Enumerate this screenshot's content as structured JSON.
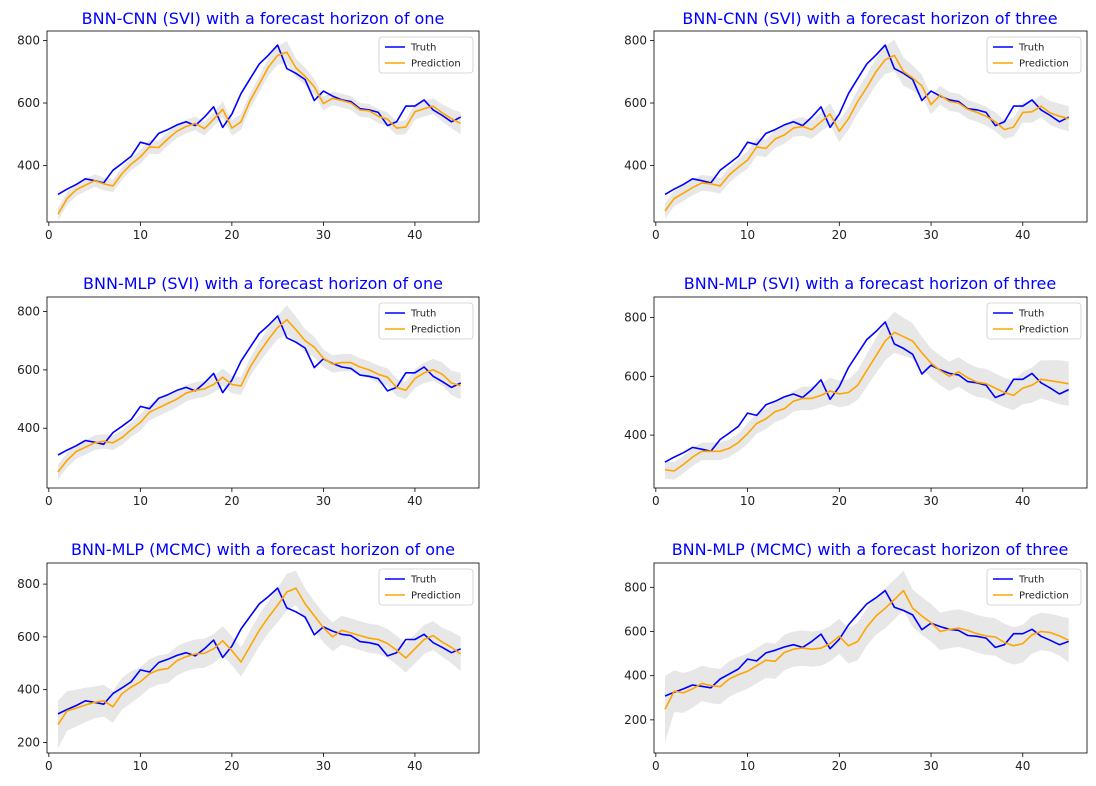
{
  "colors": {
    "truth": "#0000ff",
    "prediction": "#ffa500",
    "band": "#d3d3d3",
    "title": "#0000ff"
  },
  "chart_data": [
    {
      "type": "line",
      "title": "BNN-CNN (SVI) with a forecast horizon of one",
      "xlim": [
        -0.2,
        47
      ],
      "ylim": [
        220,
        830
      ],
      "xticks": [
        0,
        10,
        20,
        30,
        40
      ],
      "yticks": [
        400,
        600,
        800
      ],
      "legend": "top-right",
      "series": [
        {
          "name": "Truth",
          "values": [
            308,
            325,
            340,
            358,
            352,
            345,
            385,
            407,
            430,
            475,
            467,
            503,
            515,
            530,
            540,
            528,
            555,
            588,
            522,
            565,
            630,
            678,
            725,
            753,
            785,
            710,
            695,
            675,
            608,
            638,
            622,
            610,
            605,
            582,
            578,
            570,
            528,
            540,
            590,
            590,
            610,
            578,
            560,
            540,
            555
          ]
        },
        {
          "name": "Prediction",
          "values": [
            245,
            295,
            323,
            338,
            352,
            342,
            335,
            375,
            405,
            428,
            460,
            458,
            485,
            510,
            525,
            535,
            518,
            548,
            580,
            520,
            540,
            608,
            660,
            715,
            752,
            762,
            712,
            685,
            652,
            598,
            615,
            608,
            600,
            578,
            575,
            558,
            548,
            520,
            523,
            572,
            582,
            590,
            568,
            550,
            535
          ]
        }
      ],
      "band_halfwidth": [
        20,
        20,
        20,
        20,
        20,
        20,
        20,
        20,
        20,
        22,
        22,
        22,
        22,
        22,
        22,
        22,
        22,
        22,
        25,
        25,
        25,
        25,
        25,
        28,
        30,
        35,
        30,
        28,
        25,
        22,
        22,
        22,
        22,
        22,
        22,
        22,
        22,
        22,
        22,
        25,
        25,
        25,
        28,
        30,
        35
      ]
    },
    {
      "type": "line",
      "title": "BNN-CNN (SVI) with a forecast horizon of three",
      "xlim": [
        -0.2,
        47
      ],
      "ylim": [
        220,
        830
      ],
      "xticks": [
        0,
        10,
        20,
        30,
        40
      ],
      "yticks": [
        400,
        600,
        800
      ],
      "legend": "top-right",
      "series": [
        {
          "name": "Truth",
          "values": [
            308,
            325,
            340,
            358,
            352,
            345,
            385,
            407,
            430,
            475,
            467,
            503,
            515,
            530,
            540,
            528,
            555,
            588,
            522,
            565,
            630,
            678,
            725,
            753,
            785,
            710,
            695,
            675,
            608,
            638,
            622,
            610,
            605,
            582,
            578,
            570,
            528,
            540,
            590,
            590,
            610,
            578,
            560,
            540,
            555
          ]
        },
        {
          "name": "Prediction",
          "values": [
            255,
            295,
            312,
            330,
            345,
            342,
            335,
            370,
            395,
            418,
            460,
            455,
            485,
            498,
            520,
            525,
            515,
            540,
            565,
            510,
            550,
            605,
            650,
            700,
            738,
            752,
            700,
            680,
            655,
            595,
            625,
            605,
            600,
            580,
            570,
            558,
            540,
            515,
            523,
            570,
            572,
            590,
            568,
            558,
            550
          ]
        }
      ],
      "band_halfwidth": [
        25,
        25,
        25,
        25,
        25,
        25,
        25,
        25,
        25,
        28,
        28,
        28,
        28,
        28,
        28,
        30,
        30,
        30,
        35,
        35,
        35,
        38,
        40,
        42,
        45,
        50,
        45,
        40,
        35,
        30,
        30,
        30,
        30,
        30,
        30,
        30,
        30,
        30,
        30,
        32,
        35,
        35,
        38,
        40,
        40
      ]
    },
    {
      "type": "line",
      "title": "BNN-MLP (SVI) with a forecast horizon of one",
      "xlim": [
        -0.2,
        47
      ],
      "ylim": [
        195,
        850
      ],
      "xticks": [
        0,
        10,
        20,
        30,
        40
      ],
      "yticks": [
        400,
        600,
        800
      ],
      "legend": "top-right",
      "series": [
        {
          "name": "Truth",
          "values": [
            308,
            325,
            340,
            358,
            352,
            345,
            385,
            407,
            430,
            475,
            467,
            503,
            515,
            530,
            540,
            528,
            555,
            588,
            522,
            565,
            630,
            678,
            725,
            753,
            785,
            710,
            695,
            675,
            608,
            638,
            622,
            610,
            605,
            582,
            578,
            570,
            528,
            540,
            590,
            590,
            610,
            578,
            560,
            540,
            555
          ]
        },
        {
          "name": "Prediction",
          "values": [
            250,
            290,
            320,
            335,
            350,
            355,
            350,
            368,
            395,
            420,
            455,
            470,
            485,
            500,
            520,
            530,
            535,
            550,
            575,
            550,
            545,
            610,
            660,
            705,
            745,
            772,
            738,
            700,
            678,
            640,
            620,
            625,
            625,
            610,
            600,
            585,
            575,
            540,
            530,
            570,
            590,
            600,
            585,
            555,
            545
          ]
        }
      ],
      "band_halfwidth": [
        25,
        25,
        25,
        25,
        25,
        25,
        25,
        25,
        25,
        28,
        28,
        28,
        28,
        28,
        28,
        28,
        28,
        28,
        30,
        30,
        30,
        32,
        35,
        38,
        40,
        50,
        45,
        40,
        35,
        30,
        30,
        30,
        30,
        30,
        30,
        30,
        30,
        30,
        30,
        32,
        35,
        38,
        40,
        42,
        45
      ]
    },
    {
      "type": "line",
      "title": "BNN-MLP (SVI) with a forecast horizon of three",
      "xlim": [
        -0.2,
        47
      ],
      "ylim": [
        220,
        870
      ],
      "xticks": [
        0,
        10,
        20,
        30,
        40
      ],
      "yticks": [
        400,
        600,
        800
      ],
      "legend": "top-right",
      "series": [
        {
          "name": "Truth",
          "values": [
            308,
            325,
            340,
            358,
            352,
            345,
            385,
            407,
            430,
            475,
            467,
            503,
            515,
            530,
            540,
            528,
            555,
            588,
            522,
            565,
            630,
            678,
            725,
            753,
            785,
            710,
            695,
            675,
            608,
            638,
            622,
            610,
            605,
            582,
            578,
            570,
            528,
            540,
            590,
            590,
            610,
            578,
            560,
            540,
            555
          ]
        },
        {
          "name": "Prediction",
          "values": [
            282,
            278,
            300,
            325,
            345,
            345,
            345,
            355,
            375,
            405,
            440,
            455,
            480,
            490,
            515,
            525,
            525,
            535,
            550,
            540,
            545,
            570,
            620,
            670,
            720,
            750,
            735,
            720,
            680,
            645,
            620,
            600,
            615,
            595,
            580,
            575,
            560,
            545,
            535,
            560,
            570,
            590,
            585,
            580,
            575
          ]
        }
      ],
      "band_halfwidth": [
        30,
        30,
        30,
        30,
        30,
        30,
        30,
        30,
        30,
        35,
        35,
        35,
        35,
        35,
        35,
        40,
        40,
        40,
        45,
        45,
        45,
        50,
        55,
        60,
        65,
        70,
        65,
        60,
        55,
        50,
        50,
        50,
        50,
        50,
        50,
        50,
        50,
        50,
        50,
        55,
        60,
        65,
        70,
        75,
        75
      ]
    },
    {
      "type": "line",
      "title": "BNN-MLP (MCMC) with a forecast horizon of one",
      "xlim": [
        -0.2,
        47
      ],
      "ylim": [
        160,
        880
      ],
      "xticks": [
        0,
        10,
        20,
        30,
        40
      ],
      "yticks": [
        200,
        400,
        600,
        800
      ],
      "legend": "top-right",
      "series": [
        {
          "name": "Truth",
          "values": [
            308,
            325,
            340,
            358,
            352,
            345,
            385,
            407,
            430,
            475,
            467,
            503,
            515,
            530,
            540,
            528,
            555,
            588,
            522,
            565,
            630,
            678,
            725,
            753,
            785,
            710,
            695,
            675,
            608,
            638,
            622,
            610,
            605,
            582,
            578,
            570,
            528,
            540,
            590,
            590,
            610,
            578,
            560,
            540,
            555
          ]
        },
        {
          "name": "Prediction",
          "values": [
            268,
            320,
            330,
            342,
            352,
            358,
            335,
            385,
            410,
            430,
            460,
            475,
            480,
            510,
            525,
            535,
            538,
            555,
            585,
            548,
            505,
            565,
            625,
            675,
            720,
            770,
            785,
            725,
            680,
            635,
            600,
            625,
            615,
            605,
            595,
            590,
            575,
            550,
            520,
            555,
            590,
            605,
            580,
            560,
            535
          ]
        }
      ],
      "band_halfwidth": [
        90,
        75,
        70,
        65,
        60,
        60,
        60,
        60,
        60,
        55,
        55,
        55,
        55,
        55,
        55,
        55,
        55,
        55,
        55,
        55,
        55,
        60,
        60,
        60,
        65,
        70,
        65,
        60,
        55,
        55,
        55,
        55,
        55,
        55,
        55,
        55,
        55,
        55,
        55,
        55,
        55,
        55,
        55,
        60,
        65
      ]
    },
    {
      "type": "line",
      "title": "BNN-MLP (MCMC) with a forecast horizon of three",
      "xlim": [
        -0.2,
        47
      ],
      "ylim": [
        50,
        910
      ],
      "xticks": [
        0,
        10,
        20,
        30,
        40
      ],
      "yticks": [
        200,
        400,
        600,
        800
      ],
      "legend": "top-right",
      "series": [
        {
          "name": "Truth",
          "values": [
            308,
            325,
            340,
            358,
            352,
            345,
            385,
            407,
            430,
            475,
            467,
            503,
            515,
            530,
            540,
            528,
            555,
            588,
            522,
            565,
            630,
            678,
            725,
            753,
            785,
            710,
            695,
            675,
            608,
            638,
            622,
            610,
            605,
            582,
            578,
            570,
            528,
            540,
            590,
            590,
            610,
            578,
            560,
            540,
            555
          ]
        },
        {
          "name": "Prediction",
          "values": [
            248,
            330,
            322,
            340,
            365,
            355,
            350,
            385,
            405,
            420,
            445,
            470,
            465,
            505,
            520,
            525,
            520,
            525,
            545,
            578,
            535,
            555,
            620,
            670,
            705,
            745,
            785,
            705,
            670,
            640,
            600,
            610,
            615,
            605,
            590,
            580,
            575,
            550,
            535,
            545,
            585,
            600,
            595,
            580,
            560
          ]
        }
      ],
      "band_halfwidth": [
        150,
        95,
        90,
        85,
        80,
        80,
        80,
        80,
        80,
        80,
        80,
        80,
        80,
        80,
        80,
        80,
        80,
        80,
        80,
        80,
        80,
        85,
        85,
        85,
        90,
        90,
        90,
        85,
        85,
        85,
        85,
        85,
        85,
        85,
        85,
        85,
        85,
        85,
        85,
        85,
        85,
        85,
        85,
        90,
        100
      ]
    }
  ]
}
